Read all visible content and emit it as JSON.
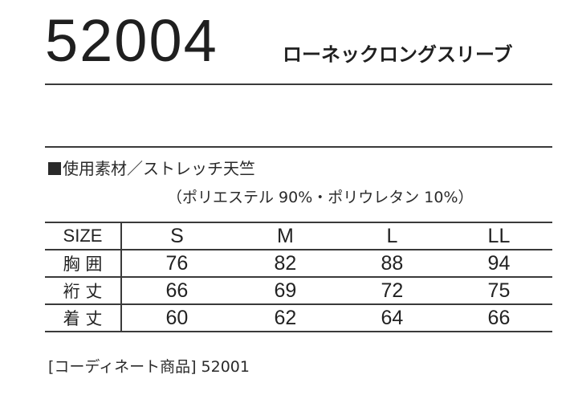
{
  "product": {
    "code": "52004",
    "name": "ローネックロングスリーブ"
  },
  "material": {
    "label": "使用素材／ストレッチ天竺",
    "composition": "（ポリエステル 90%・ポリウレタン 10%）"
  },
  "size_table": {
    "header": [
      "SIZE",
      "S",
      "M",
      "L",
      "LL"
    ],
    "rows": [
      {
        "label": "胸 囲",
        "values": [
          "76",
          "82",
          "88",
          "94"
        ]
      },
      {
        "label": "裄 丈",
        "values": [
          "66",
          "69",
          "72",
          "75"
        ]
      },
      {
        "label": "着 丈",
        "values": [
          "60",
          "62",
          "64",
          "66"
        ]
      }
    ]
  },
  "coordinate": {
    "text": "[コーディネート商品] 52001"
  }
}
